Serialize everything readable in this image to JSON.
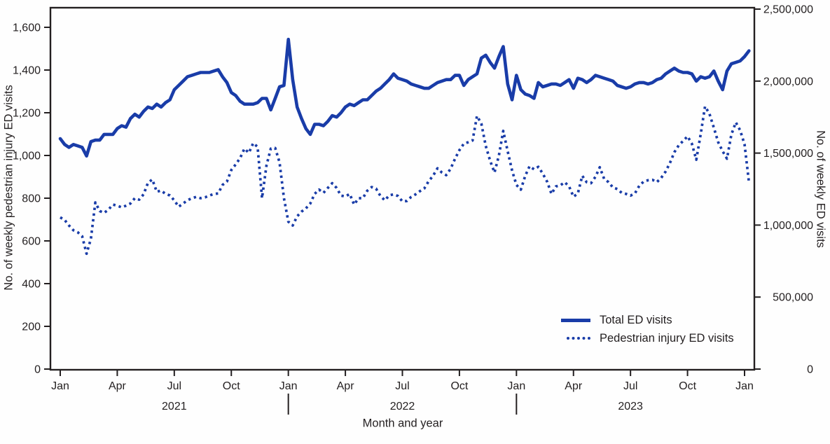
{
  "figure": {
    "line_color": "#193ca8",
    "axis_color": "#231f20",
    "y_left": {
      "title": "No. of weekly pedestrian injury ED visits",
      "tick_labels": [
        "0",
        "200",
        "400",
        "600",
        "800",
        "1,000",
        "1,200",
        "1,400",
        "1,600"
      ],
      "tick_step": 200,
      "max": 1600
    },
    "y_right": {
      "title": "No. of weekly ED visits",
      "tick_labels": [
        "0",
        "500,000",
        "1,000,000",
        "1,500,000",
        "2,000,000",
        "2,500,000"
      ],
      "tick_step": 500000,
      "max": 2500000
    },
    "x_axis": {
      "title": "Month and year",
      "month_ticks": [
        "Jan",
        "Apr",
        "Jul",
        "Oct",
        "Jan",
        "Apr",
        "Jul",
        "Oct",
        "Jan",
        "Apr",
        "Jul",
        "Oct",
        "Jan"
      ],
      "year_labels": [
        "2021",
        "2022",
        "2023"
      ]
    },
    "legend": {
      "total_label": "Total ED visits",
      "pedestrian_label": "Pedestrian injury ED visits"
    }
  },
  "chart_data": {
    "type": "line",
    "x_unit": "week",
    "x_range": "Jan 2021 - Jan 2024",
    "xlabel": "Month and year",
    "ylabel_left": "No. of weekly pedestrian injury ED visits",
    "ylabel_right": "No. of weekly ED visits",
    "y_left_range": [
      0,
      1600
    ],
    "y_right_range": [
      0,
      2500000
    ],
    "grid": false,
    "legend_position": "lower right inside",
    "series": [
      {
        "name": "Total ED visits",
        "axis": "right",
        "style": "solid",
        "values": [
          1600000,
          1560000,
          1540000,
          1560000,
          1550000,
          1540000,
          1480000,
          1580000,
          1590000,
          1590000,
          1630000,
          1630000,
          1630000,
          1670000,
          1690000,
          1680000,
          1740000,
          1770000,
          1750000,
          1790000,
          1820000,
          1810000,
          1840000,
          1820000,
          1850000,
          1870000,
          1940000,
          1970000,
          2000000,
          2030000,
          2040000,
          2050000,
          2060000,
          2060000,
          2060000,
          2070000,
          2080000,
          2030000,
          1990000,
          1920000,
          1900000,
          1860000,
          1840000,
          1840000,
          1840000,
          1850000,
          1880000,
          1880000,
          1800000,
          1880000,
          1960000,
          1970000,
          2290000,
          2010000,
          1820000,
          1740000,
          1670000,
          1630000,
          1700000,
          1700000,
          1690000,
          1720000,
          1760000,
          1750000,
          1780000,
          1820000,
          1840000,
          1830000,
          1850000,
          1870000,
          1870000,
          1900000,
          1930000,
          1950000,
          1980000,
          2010000,
          2050000,
          2020000,
          2010000,
          2000000,
          1980000,
          1970000,
          1960000,
          1950000,
          1950000,
          1970000,
          1990000,
          2000000,
          2010000,
          2010000,
          2040000,
          2040000,
          1970000,
          2010000,
          2030000,
          2050000,
          2160000,
          2180000,
          2130000,
          2090000,
          2170000,
          2240000,
          1980000,
          1870000,
          2040000,
          1940000,
          1910000,
          1900000,
          1880000,
          1990000,
          1960000,
          1970000,
          1980000,
          1980000,
          1970000,
          1990000,
          2010000,
          1950000,
          2020000,
          2010000,
          1990000,
          2010000,
          2040000,
          2030000,
          2020000,
          2010000,
          2000000,
          1970000,
          1960000,
          1950000,
          1960000,
          1980000,
          1990000,
          1990000,
          1980000,
          1990000,
          2010000,
          2020000,
          2050000,
          2070000,
          2090000,
          2070000,
          2060000,
          2060000,
          2050000,
          2000000,
          2030000,
          2020000,
          2030000,
          2070000,
          2000000,
          1940000,
          2070000,
          2120000,
          2130000,
          2140000,
          2170000,
          2210000
        ]
      },
      {
        "name": "Pedestrian injury ED visits",
        "axis": "left",
        "style": "dotted",
        "values": [
          710,
          698,
          672,
          650,
          640,
          622,
          540,
          610,
          780,
          740,
          731,
          747,
          770,
          765,
          757,
          765,
          775,
          800,
          793,
          818,
          872,
          888,
          830,
          836,
          820,
          813,
          790,
          760,
          775,
          790,
          800,
          806,
          800,
          804,
          812,
          820,
          822,
          862,
          878,
          932,
          958,
          988,
          1032,
          1012,
          1058,
          1040,
          800,
          952,
          1032,
          1035,
          968,
          800,
          690,
          672,
          715,
          737,
          752,
          775,
          820,
          840,
          825,
          848,
          870,
          848,
          812,
          808,
          820,
          770,
          800,
          800,
          835,
          852,
          845,
          810,
          790,
          813,
          818,
          810,
          785,
          787,
          806,
          818,
          833,
          846,
          880,
          905,
          940,
          920,
          908,
          938,
          985,
          1025,
          1055,
          1062,
          1070,
          1185,
          1150,
          1045,
          975,
          920,
          1000,
          1115,
          1020,
          930,
          862,
          840,
          905,
          950,
          935,
          947,
          915,
          877,
          820,
          855,
          860,
          875,
          855,
          807,
          822,
          905,
          875,
          870,
          900,
          945,
          890,
          875,
          850,
          843,
          825,
          820,
          812,
          822,
          858,
          878,
          884,
          886,
          875,
          895,
          925,
          965,
          1015,
          1048,
          1068,
          1090,
          1055,
          980,
          1100,
          1230,
          1195,
          1130,
          1062,
          1020,
          985,
          1098,
          1155,
          1118,
          1052,
          875
        ]
      }
    ]
  }
}
